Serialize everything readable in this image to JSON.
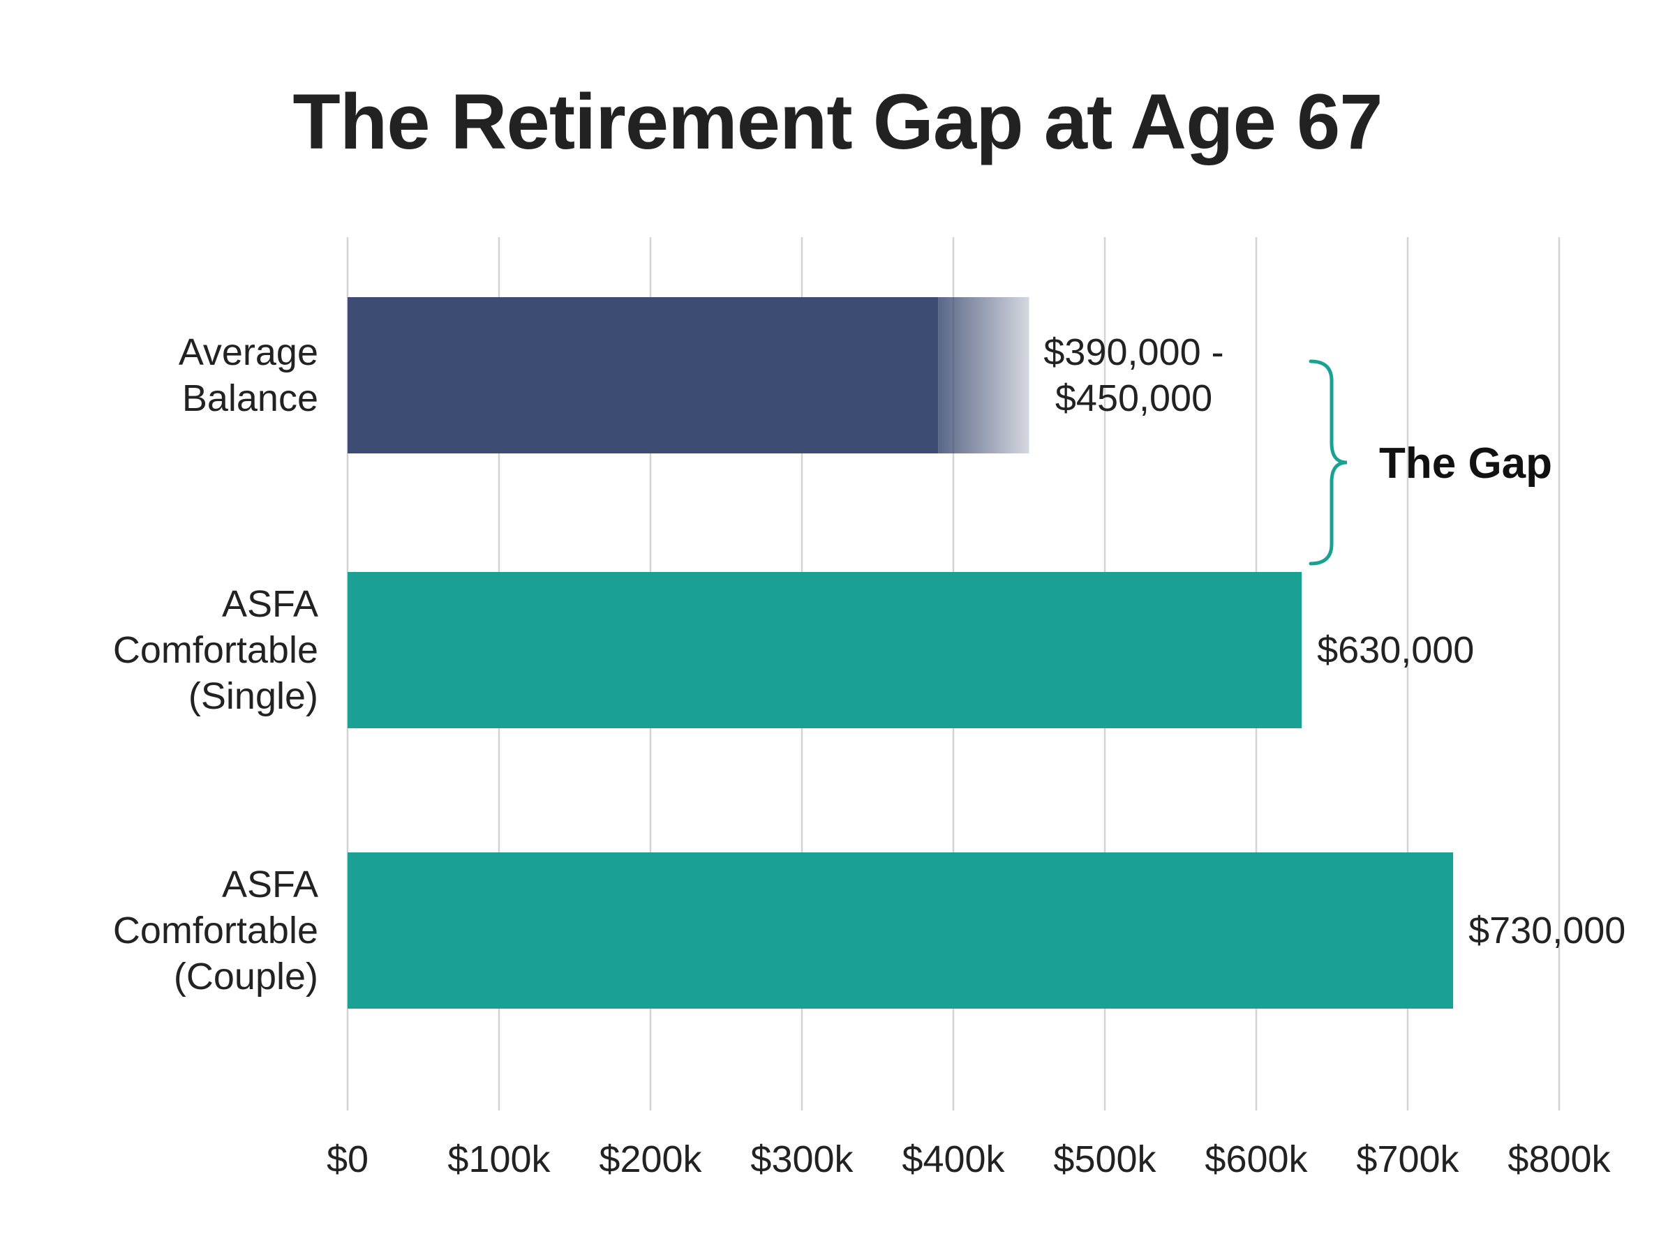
{
  "chart_data": {
    "type": "bar",
    "orientation": "horizontal",
    "title": "The Retirement Gap at Age 67",
    "categories": [
      [
        "Average",
        "Balance"
      ],
      [
        "ASFA",
        "Comfortable",
        "(Single)"
      ],
      [
        "ASFA",
        "Comfortable",
        "(Couple)"
      ]
    ],
    "bars": [
      {
        "start": 0,
        "value": 390000,
        "range_max": 450000,
        "label": [
          "$390,000 -",
          "$450,000"
        ],
        "color": "#3d4c72"
      },
      {
        "start": 0,
        "value": 630000,
        "label": [
          "$630,000"
        ],
        "color": "#1ba193"
      },
      {
        "start": 0,
        "value": 730000,
        "label": [
          "$730,000"
        ],
        "color": "#1ba193"
      }
    ],
    "xlim": [
      0,
      800000
    ],
    "xticks": [
      0,
      100000,
      200000,
      300000,
      400000,
      500000,
      600000,
      700000,
      800000
    ],
    "xtick_labels": [
      "$0",
      "$100k",
      "$200k",
      "$300k",
      "$400k",
      "$500k",
      "$600k",
      "$700k",
      "$800k"
    ],
    "grid": true,
    "annotation": {
      "text": "The Gap",
      "from_value": 450000,
      "to_value": 630000,
      "color": "#1ba193"
    },
    "xlabel": "",
    "ylabel": ""
  }
}
